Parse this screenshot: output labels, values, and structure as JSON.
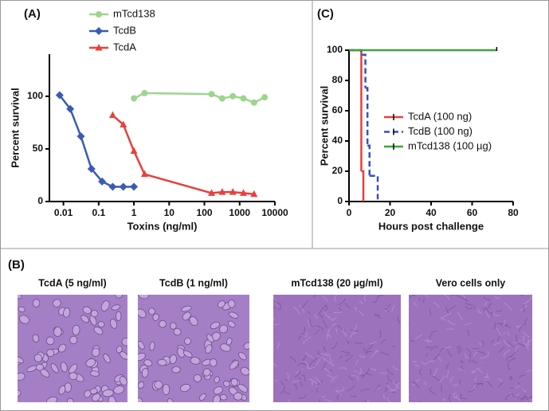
{
  "chart_data": [
    {
      "type": "line",
      "title": "(A)",
      "xlabel": "Toxins (ng/ml)",
      "ylabel": "Percent survival",
      "xscale": "log",
      "xlim": [
        0.004,
        10000
      ],
      "xticks": [
        0.01,
        0.1,
        1,
        10,
        100,
        1000,
        10000
      ],
      "ylim": [
        0,
        140
      ],
      "yticks": [
        0,
        50,
        100
      ],
      "grid": false,
      "legend": "top-left",
      "series": [
        {
          "name": "mTcd138",
          "color": "#9dd58f",
          "marker": "circle",
          "x": [
            1,
            2,
            160,
            320,
            640,
            1280,
            2560,
            5120
          ],
          "values": [
            98,
            103,
            102,
            98,
            100,
            98,
            94,
            99
          ]
        },
        {
          "name": "TcdB",
          "color": "#3a5bb5",
          "marker": "diamond",
          "x": [
            0.0078,
            0.0156,
            0.03125,
            0.0625,
            0.125,
            0.25,
            0.5,
            1
          ],
          "values": [
            101,
            88,
            62,
            31,
            19,
            14,
            14,
            14
          ]
        },
        {
          "name": "TcdA",
          "color": "#e8413c",
          "marker": "triangle",
          "x": [
            0.25,
            0.5,
            1,
            2,
            160,
            320,
            640,
            1280,
            2560
          ],
          "values": [
            82,
            73,
            48,
            26,
            8,
            9,
            9,
            8,
            7
          ]
        }
      ]
    },
    {
      "type": "step",
      "title": "(C)",
      "xlabel": "Hours post challenge",
      "ylabel": "Percent survival",
      "xlim": [
        0,
        80
      ],
      "xticks": [
        0,
        20,
        40,
        60,
        80
      ],
      "ylim": [
        0,
        100
      ],
      "yticks": [
        0,
        20,
        40,
        60,
        80,
        100
      ],
      "grid": false,
      "legend": "center-right",
      "series": [
        {
          "name": "TcdA (100 ng)",
          "color": "#e8413c",
          "linestyle": "solid",
          "x": [
            0,
            6,
            7
          ],
          "values": [
            100,
            20,
            0
          ]
        },
        {
          "name": "TcdB (100 ng)",
          "color": "#3a4fb5",
          "linestyle": "dashed",
          "x": [
            0,
            6,
            8,
            9,
            10,
            14
          ],
          "values": [
            100,
            97,
            75,
            37,
            17,
            0
          ]
        },
        {
          "name": "mTcd138 (100 µg)",
          "color": "#3aa63a",
          "linestyle": "solid",
          "x": [
            0,
            72
          ],
          "values": [
            100,
            100
          ]
        }
      ]
    }
  ],
  "panel_b": {
    "label": "(B)",
    "images": [
      {
        "caption": "TcdA (5 ng/ml)"
      },
      {
        "caption": "TcdB (1 ng/ml)"
      },
      {
        "caption": "mTcd138 (20 µg/ml)"
      },
      {
        "caption": "Vero cells only"
      }
    ]
  }
}
